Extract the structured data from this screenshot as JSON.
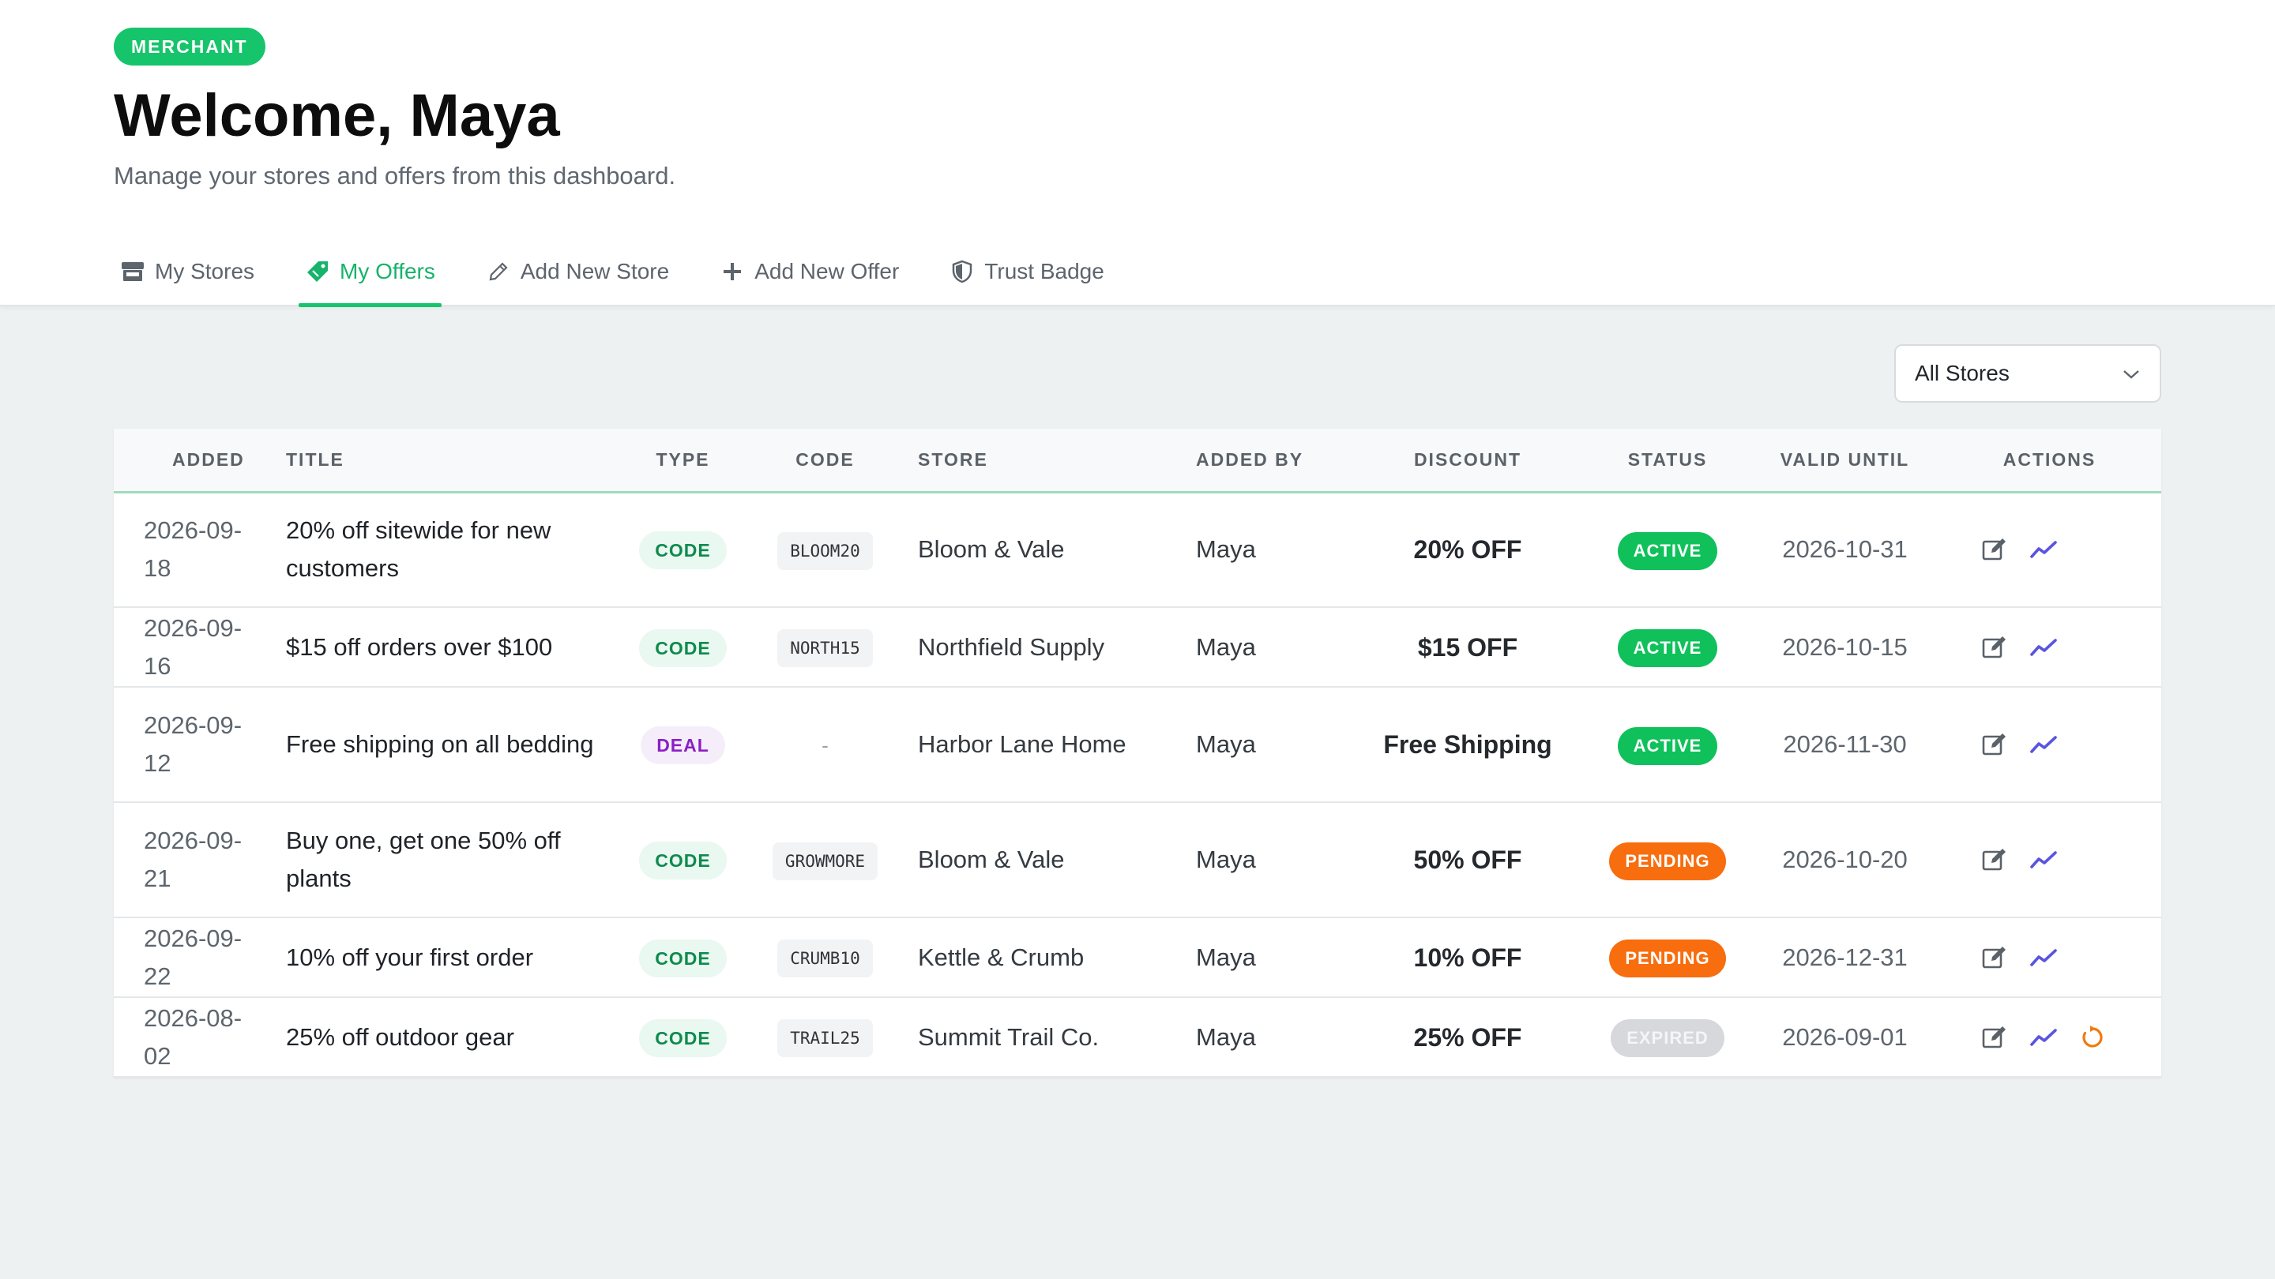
{
  "header": {
    "role_badge": "MERCHANT",
    "welcome": "Welcome, Maya",
    "subtitle": "Manage your stores and offers from this dashboard."
  },
  "tabs": [
    {
      "label": "My Stores",
      "icon": "store-icon",
      "active": false
    },
    {
      "label": "My Offers",
      "icon": "tag-icon",
      "active": true
    },
    {
      "label": "Add New Store",
      "icon": "pencil-icon",
      "active": false
    },
    {
      "label": "Add New Offer",
      "icon": "plus-icon",
      "active": false
    },
    {
      "label": "Trust Badge",
      "icon": "shield-icon",
      "active": false
    }
  ],
  "filter": {
    "selected": "All Stores",
    "icon": "chevron-down-icon"
  },
  "table": {
    "columns": [
      "ADDED",
      "TITLE",
      "TYPE",
      "CODE",
      "STORE",
      "ADDED BY",
      "DISCOUNT",
      "STATUS",
      "VALID UNTIL",
      "ACTIONS"
    ],
    "rows": [
      {
        "added": "2026-09-18",
        "title": "20% off sitewide for new customers",
        "type": "CODE",
        "code": "BLOOM20",
        "store": "Bloom & Vale",
        "added_by": "Maya",
        "discount": "20% OFF",
        "status": "ACTIVE",
        "valid_until": "2026-10-31",
        "tall": true,
        "renew": false
      },
      {
        "added": "2026-09-16",
        "title": "$15 off orders over $100",
        "type": "CODE",
        "code": "NORTH15",
        "store": "Northfield Supply",
        "added_by": "Maya",
        "discount": "$15 OFF",
        "status": "ACTIVE",
        "valid_until": "2026-10-15",
        "tall": false,
        "renew": false
      },
      {
        "added": "2026-09-12",
        "title": "Free shipping on all bedding",
        "type": "DEAL",
        "code": "-",
        "store": "Harbor Lane Home",
        "added_by": "Maya",
        "discount": "Free Shipping",
        "status": "ACTIVE",
        "valid_until": "2026-11-30",
        "tall": true,
        "renew": false
      },
      {
        "added": "2026-09-21",
        "title": "Buy one, get one 50% off plants",
        "type": "CODE",
        "code": "GROWMORE",
        "store": "Bloom & Vale",
        "added_by": "Maya",
        "discount": "50% OFF",
        "status": "PENDING",
        "valid_until": "2026-10-20",
        "tall": true,
        "renew": false
      },
      {
        "added": "2026-09-22",
        "title": "10% off your first order",
        "type": "CODE",
        "code": "CRUMB10",
        "store": "Kettle & Crumb",
        "added_by": "Maya",
        "discount": "10% OFF",
        "status": "PENDING",
        "valid_until": "2026-12-31",
        "tall": false,
        "renew": false
      },
      {
        "added": "2026-08-02",
        "title": "25% off outdoor gear",
        "type": "CODE",
        "code": "TRAIL25",
        "store": "Summit Trail Co.",
        "added_by": "Maya",
        "discount": "25% OFF",
        "status": "EXPIRED",
        "valid_until": "2026-09-01",
        "tall": false,
        "renew": true
      }
    ]
  },
  "colors": {
    "accent": "#16c46b",
    "active": "#10c15b",
    "pending": "#f86d0e",
    "expired": "#d6d8db",
    "analytics": "#5a55e0",
    "renew": "#f07a12"
  }
}
